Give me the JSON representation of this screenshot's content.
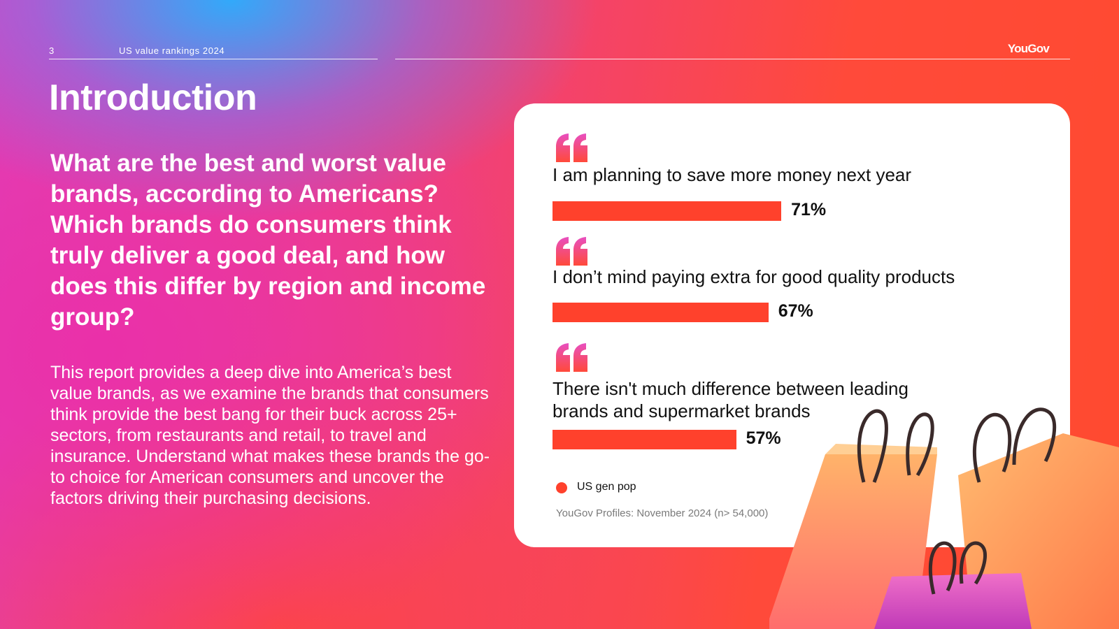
{
  "header": {
    "page_number": "3",
    "doc_title": "US value rankings 2024",
    "logo": "YouGov"
  },
  "intro": {
    "title": "Introduction",
    "question": "What are the best and worst value brands, according to Americans? Which brands do consumers think truly deliver a good deal, and how does this differ by region and income group?",
    "body": "This report provides a deep dive into America’s best value brands, as we examine the brands that consumers think provide the best bang for their buck across 25+ sectors, from restaurants and retail, to travel and insurance. Understand what makes these brands the go-to choice for American consumers and uncover the factors driving their purchasing decisions."
  },
  "chart_data": {
    "type": "bar",
    "orientation": "horizontal",
    "categories": [
      "I am planning to save more money next year",
      "I don’t mind paying extra for good quality products",
      "There isn't much difference between leading brands and supermarket brands"
    ],
    "series": [
      {
        "name": "US gen pop",
        "values": [
          71,
          67,
          57
        ],
        "labels": [
          "71%",
          "67%",
          "57%"
        ]
      }
    ],
    "legend": {
      "label": "US gen pop",
      "placement": "bottom-left"
    },
    "xlim": [
      0,
      100
    ],
    "source": "YouGov Profiles: November 2024 (n> 54,000)",
    "colors": {
      "bar": "#ff412c",
      "quote_top": "#e84fc0",
      "quote_bottom": "#ff4a3a"
    }
  }
}
